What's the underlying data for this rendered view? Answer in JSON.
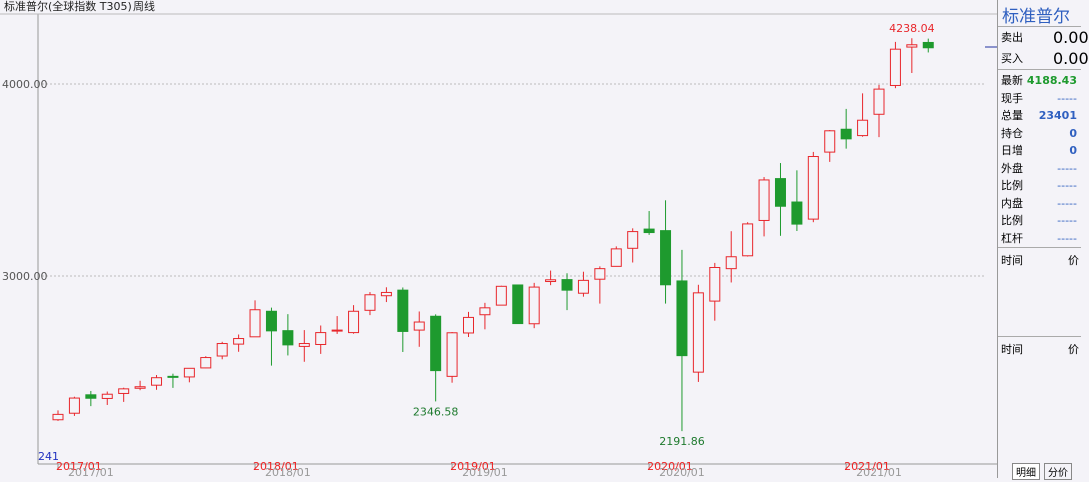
{
  "header": {
    "title": "标准普尔(全球指数 T305)",
    "period": "周线"
  },
  "chart_data": {
    "type": "candlestick",
    "categories": [
      "2017/01",
      null,
      null,
      null,
      null,
      null,
      null,
      null,
      null,
      null,
      null,
      null,
      "2018/01",
      null,
      null,
      null,
      null,
      null,
      null,
      null,
      null,
      null,
      null,
      null,
      "2019/01",
      null,
      null,
      null,
      null,
      null,
      null,
      null,
      null,
      null,
      null,
      null,
      "2020/01",
      null,
      null,
      null,
      null,
      null,
      null,
      null,
      null,
      null,
      null,
      null,
      "2021/01",
      null,
      null,
      null,
      null,
      null
    ],
    "open": [
      2251,
      2285,
      2381,
      2362,
      2388,
      2415,
      2431,
      2477,
      2474,
      2521,
      2583,
      2645,
      2683,
      2816,
      2715,
      2633,
      2643,
      2718,
      2705,
      2821,
      2897,
      2926,
      2718,
      2790,
      2477,
      2703,
      2798,
      2848,
      2953,
      2751,
      2971,
      2981,
      2910,
      2983,
      3050,
      3144,
      3244,
      3236,
      2974,
      2499,
      2869,
      3038,
      3105,
      3289,
      3507,
      3385,
      3296,
      3645,
      3764,
      3731,
      3842,
      3992,
      4192,
      4216
    ],
    "high": [
      2300,
      2371,
      2401,
      2398,
      2418,
      2454,
      2484,
      2491,
      2519,
      2582,
      2657,
      2695,
      2873,
      2835,
      2801,
      2718,
      2742,
      2791,
      2848,
      2916,
      2941,
      2940,
      2815,
      2800,
      2708,
      2813,
      2860,
      2949,
      2955,
      2964,
      3028,
      3014,
      3022,
      3050,
      3154,
      3248,
      3338,
      3394,
      3136,
      2954,
      3068,
      3233,
      3280,
      3515,
      3588,
      3550,
      3646,
      3760,
      3870,
      3951,
      3995,
      4219,
      4238.04,
      4236
    ],
    "low": [
      2245,
      2271,
      2322,
      2328,
      2344,
      2405,
      2407,
      2417,
      2446,
      2520,
      2566,
      2605,
      2683,
      2533,
      2586,
      2553,
      2594,
      2698,
      2699,
      2796,
      2864,
      2604,
      2631,
      2346.58,
      2444,
      2682,
      2722,
      2848,
      2751,
      2728,
      2952,
      2822,
      2892,
      2856,
      3050,
      3070,
      3214,
      2856,
      2191.86,
      2448,
      2767,
      2966,
      3101,
      3206,
      3209,
      3234,
      3280,
      3594,
      3663,
      3725,
      3723,
      3978,
      4057,
      4164
    ],
    "close": [
      2279,
      2364,
      2363,
      2384,
      2412,
      2423,
      2470,
      2472,
      2519,
      2575,
      2648,
      2674,
      2824,
      2714,
      2641,
      2648,
      2705,
      2718,
      2816,
      2902,
      2914,
      2711,
      2760,
      2507,
      2704,
      2784,
      2834,
      2946,
      2752,
      2942,
      2980,
      2926,
      2977,
      3038,
      3141,
      3231,
      3226,
      2954,
      2585,
      2912,
      3044,
      3100,
      3271,
      3500,
      3363,
      3270,
      3622,
      3756,
      3714,
      3811,
      3973,
      4181,
      4204,
      4188.43
    ],
    "up_color": "#e8262b",
    "down_color": "#1e9a2e",
    "ylim": [
      2031,
      4333
    ],
    "yticks": [
      {
        "value": 3000,
        "label": "3000.00"
      },
      {
        "value": 4000,
        "label": "4000.00"
      }
    ],
    "grid": true,
    "annotations": [
      "4238.04",
      "2346.58",
      "2191.86"
    ],
    "corner_label": "241"
  },
  "quote": {
    "name": "标准普尔",
    "bid_ask": [
      {
        "label": "卖出",
        "value": "0.00"
      },
      {
        "label": "买入",
        "value": "0.00"
      }
    ],
    "rows": [
      {
        "label": "最新",
        "value": "4188.43"
      },
      {
        "label": "现手",
        "value": "-----"
      },
      {
        "label": "总量",
        "value": "23401"
      },
      {
        "label": "持仓",
        "value": "0"
      },
      {
        "label": "日增",
        "value": "0"
      },
      {
        "label": "外盘",
        "value": "-----"
      },
      {
        "label": "比例",
        "value": "-----"
      },
      {
        "label": "内盘",
        "value": "-----"
      },
      {
        "label": "比例",
        "value": "-----"
      },
      {
        "label": "杠杆",
        "value": "-----"
      }
    ],
    "time_header": [
      "时间",
      "价"
    ],
    "tabs": [
      "明细",
      "分价"
    ]
  }
}
